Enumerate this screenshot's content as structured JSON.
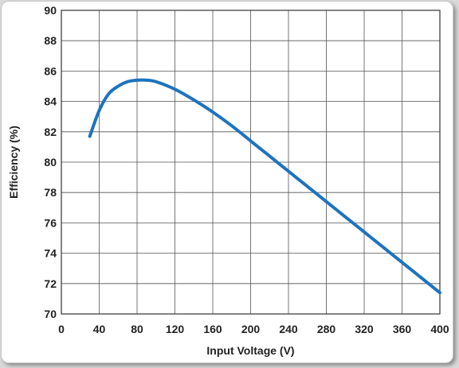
{
  "chart_data": {
    "type": "line",
    "title": "",
    "xlabel": "Input Voltage (V)",
    "ylabel": "Efficiency (%)",
    "xlim": [
      0,
      400
    ],
    "ylim": [
      70,
      90
    ],
    "xticks": [
      0,
      40,
      80,
      120,
      160,
      200,
      240,
      280,
      320,
      360,
      400
    ],
    "yticks": [
      70,
      72,
      74,
      76,
      78,
      80,
      82,
      84,
      86,
      88,
      90
    ],
    "grid": true,
    "legend": "none",
    "series": [
      {
        "color": "#1e73be",
        "x": [
          30,
          40,
          50,
          60,
          70,
          80,
          90,
          100,
          120,
          140,
          160,
          180,
          200,
          220,
          240,
          260,
          280,
          300,
          320,
          340,
          360,
          380,
          400
        ],
        "y": [
          81.7,
          83.4,
          84.5,
          85.0,
          85.3,
          85.4,
          85.4,
          85.3,
          84.8,
          84.1,
          83.3,
          82.4,
          81.4,
          80.4,
          79.4,
          78.4,
          77.4,
          76.4,
          75.4,
          74.4,
          73.4,
          72.4,
          71.4
        ]
      }
    ]
  }
}
